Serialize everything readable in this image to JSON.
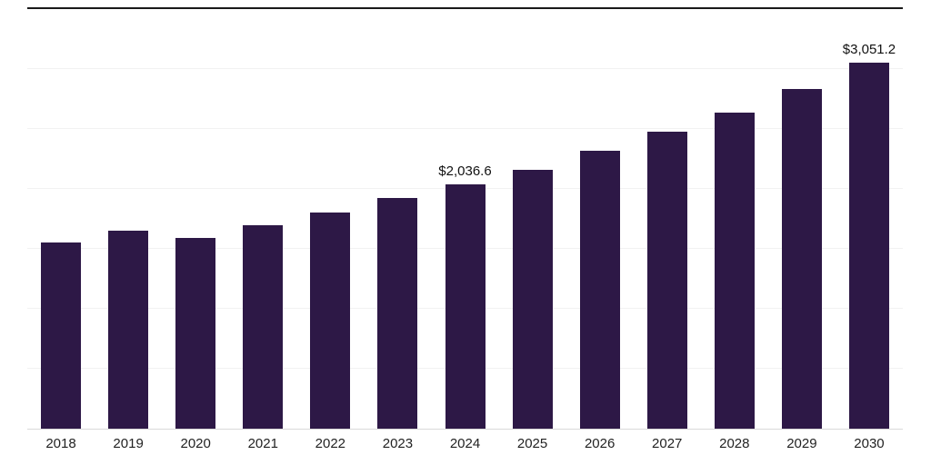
{
  "chart_data": {
    "type": "bar",
    "categories": [
      "2018",
      "2019",
      "2020",
      "2021",
      "2022",
      "2023",
      "2024",
      "2025",
      "2026",
      "2027",
      "2028",
      "2029",
      "2030"
    ],
    "values": [
      1550,
      1650,
      1590,
      1700,
      1800,
      1925,
      2036.6,
      2160,
      2320,
      2480,
      2640,
      2835,
      3051.2
    ],
    "annotations": [
      {
        "category": "2024",
        "text": "$2,036.6"
      },
      {
        "category": "2030",
        "text": "$3,051.2"
      }
    ],
    "title": "",
    "xlabel": "",
    "ylabel": "",
    "ylim": [
      0,
      3500
    ],
    "grid_step": 500,
    "grid": true,
    "legend": "none",
    "bar_color": "#2d1846",
    "gridline_color": "#f2f2f2",
    "axis_line_color": "#d9d9d9",
    "top_border_color": "#1a1a1a",
    "label_color": "#222222"
  }
}
